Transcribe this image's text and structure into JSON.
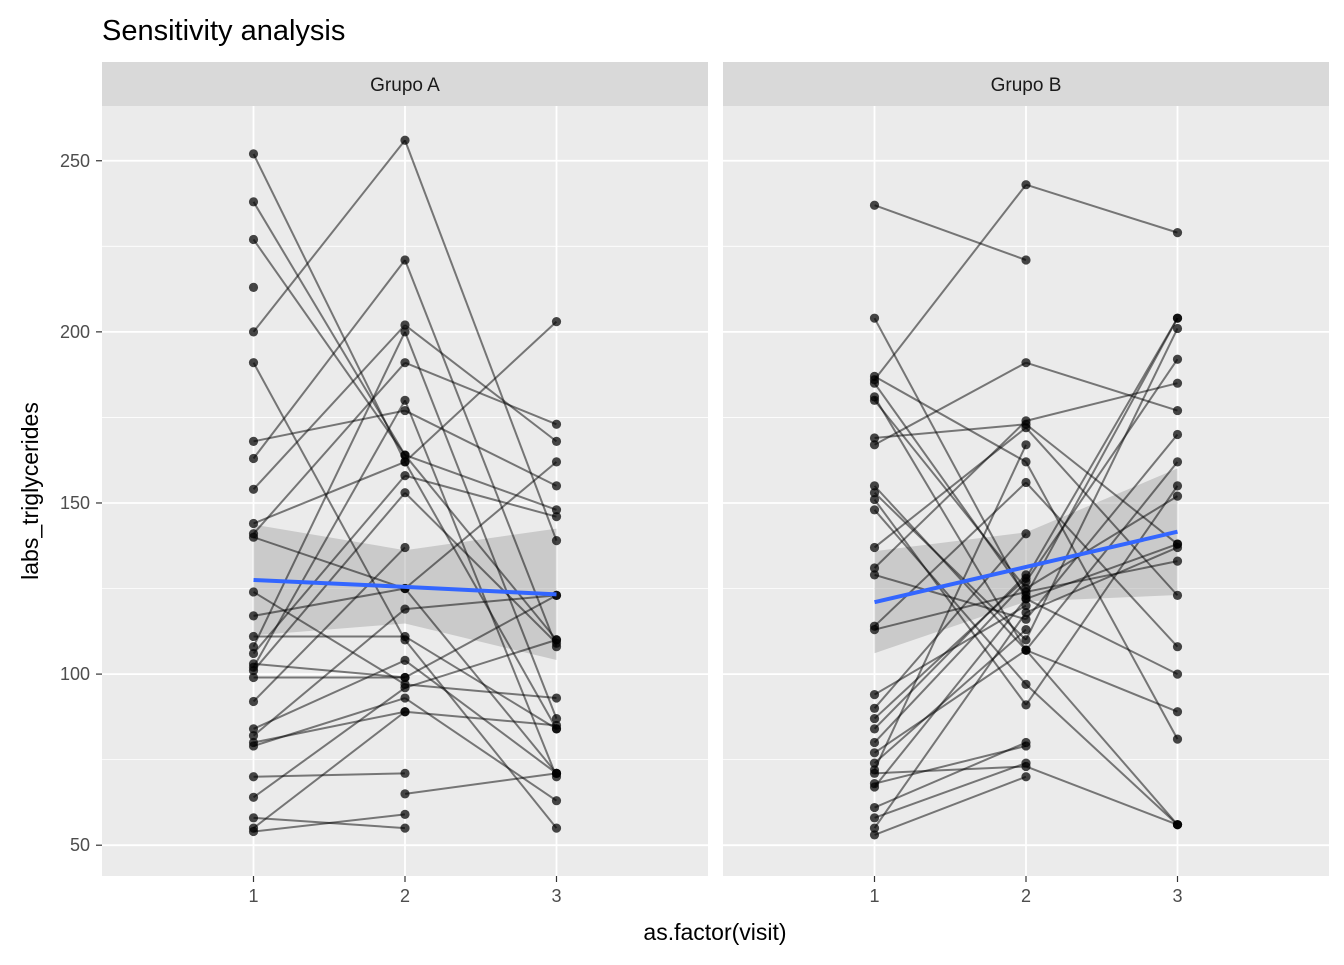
{
  "chart_data": {
    "type": "line",
    "title": "Sensitivity analysis",
    "xlabel": "as.factor(visit)",
    "ylabel": "labs_triglycerides",
    "x_categories": [
      "1",
      "2",
      "3"
    ],
    "y_ticks": [
      50,
      100,
      150,
      200,
      250
    ],
    "ylim": [
      41,
      266
    ],
    "grid": true,
    "panels": [
      {
        "name": "Grupo A",
        "subjects": [
          [
            252,
            162,
            84
          ],
          [
            238,
            164,
            110
          ],
          [
            227,
            164,
            148
          ],
          [
            213,
            null,
            null
          ],
          [
            200,
            256,
            139
          ],
          [
            191,
            110,
            55
          ],
          [
            168,
            177,
            155
          ],
          [
            163,
            221,
            108
          ],
          [
            154,
            202,
            168
          ],
          [
            144,
            162,
            203
          ],
          [
            141,
            191,
            173
          ],
          [
            140,
            125,
            71
          ],
          [
            124,
            97,
            93
          ],
          [
            117,
            125,
            162
          ],
          [
            111,
            111,
            84
          ],
          [
            108,
            200,
            87
          ],
          [
            106,
            158,
            146
          ],
          [
            103,
            99,
            null
          ],
          [
            102,
            180,
            70
          ],
          [
            101,
            153,
            109
          ],
          [
            99,
            99,
            123
          ],
          [
            92,
            137,
            null
          ],
          [
            84,
            104,
            71
          ],
          [
            82,
            119,
            123
          ],
          [
            80,
            89,
            85
          ],
          [
            79,
            93,
            63
          ],
          [
            70,
            71,
            null
          ],
          [
            64,
            96,
            110
          ],
          [
            58,
            55,
            null
          ],
          [
            55,
            89,
            null
          ],
          [
            54,
            59,
            null
          ],
          [
            null,
            65,
            71
          ]
        ],
        "smooth": {
          "fit": [
            127.5,
            125.5,
            123.3
          ],
          "lower": [
            111.3,
            114.8,
            104.1
          ],
          "upper": [
            143.7,
            136.2,
            142.5
          ]
        }
      },
      {
        "name": "Grupo B",
        "subjects": [
          [
            237,
            221,
            null
          ],
          [
            204,
            122,
            100
          ],
          [
            187,
            162,
            81
          ],
          [
            186,
            243,
            229
          ],
          [
            185,
            123,
            204
          ],
          [
            181,
            107,
            89
          ],
          [
            180,
            125,
            152
          ],
          [
            169,
            173,
            138
          ],
          [
            167,
            191,
            177
          ],
          [
            155,
            107,
            56
          ],
          [
            153,
            110,
            201
          ],
          [
            151,
            91,
            155
          ],
          [
            148,
            97,
            56
          ],
          [
            137,
            172,
            123
          ],
          [
            131,
            174,
            185
          ],
          [
            129,
            116,
            170
          ],
          [
            114,
            156,
            108
          ],
          [
            113,
            124,
            133
          ],
          [
            94,
            120,
            null
          ],
          [
            90,
            141,
            null
          ],
          [
            87,
            128,
            204
          ],
          [
            84,
            129,
            null
          ],
          [
            80,
            127,
            192
          ],
          [
            77,
            107,
            162
          ],
          [
            74,
            113,
            null
          ],
          [
            72,
            167,
            null
          ],
          [
            71,
            73,
            56
          ],
          [
            68,
            79,
            null
          ],
          [
            67,
            122,
            138
          ],
          [
            61,
            80,
            null
          ],
          [
            58,
            74,
            null
          ],
          [
            55,
            118,
            137
          ],
          [
            53,
            70,
            null
          ]
        ],
        "smooth": {
          "fit": [
            121.0,
            131.3,
            141.6
          ],
          "lower": [
            106.1,
            121.2,
            123.1
          ],
          "upper": [
            135.9,
            141.4,
            160.1
          ]
        }
      }
    ]
  }
}
